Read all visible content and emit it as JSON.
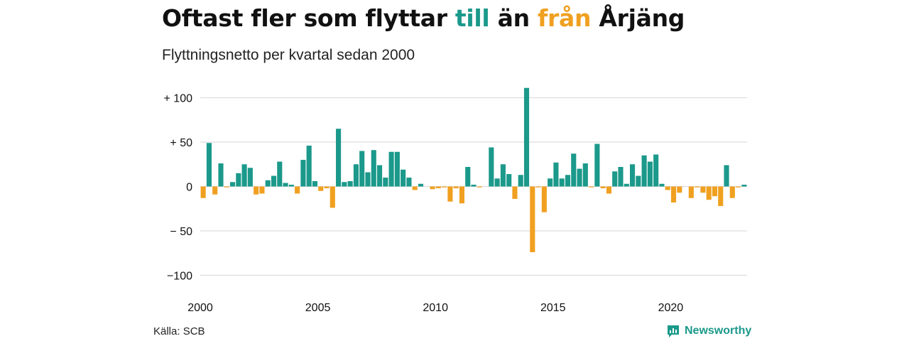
{
  "header": {
    "title_prefix": "Oftast fler som flyttar ",
    "title_in": "till",
    "title_mid": " än ",
    "title_out": "från",
    "title_suffix": " Årjäng",
    "subtitle": "Flyttningsnetto per kvartal sedan 2000"
  },
  "footer": {
    "source": "Källa: SCB",
    "brand": "Newsworthy",
    "brand_icon": "newsworthy-logo-icon"
  },
  "colors": {
    "positive": "#1b998b",
    "negative": "#f0a020",
    "grid": "#dddddd",
    "text": "#111111"
  },
  "chart_data": {
    "type": "bar",
    "title": "Oftast fler som flyttar till än från Årjäng",
    "subtitle": "Flyttningsnetto per kvartal sedan 2000",
    "xlabel": "",
    "ylabel": "",
    "ylim": [
      -100,
      110
    ],
    "yticks": [
      100,
      50,
      0,
      -50,
      -100
    ],
    "ytick_labels": [
      "+ 100",
      "+  50",
      "0",
      "− 50",
      "−100"
    ],
    "xticks": [
      "2000",
      "2005",
      "2010",
      "2015",
      "2020"
    ],
    "grid": true,
    "start": "2000 Q1",
    "frequency": "quarter",
    "values": [
      -13,
      49,
      -9,
      26,
      -1,
      5,
      15,
      25,
      21,
      -9,
      -8,
      7,
      12,
      28,
      4,
      2,
      -8,
      30,
      46,
      6,
      -5,
      -2,
      -24,
      65,
      5,
      6,
      25,
      40,
      16,
      41,
      24,
      10,
      39,
      39,
      19,
      10,
      -4,
      3,
      0,
      -3,
      -2,
      -1,
      -17,
      -2,
      -19,
      22,
      2,
      -1,
      0,
      44,
      9,
      25,
      14,
      -14,
      13,
      111,
      -74,
      -1,
      -29,
      9,
      27,
      9,
      13,
      37,
      20,
      26,
      -1,
      48,
      -2,
      -8,
      17,
      22,
      3,
      25,
      12,
      35,
      28,
      36,
      3,
      -4,
      -18,
      -7,
      0,
      -13,
      -1,
      -7,
      -15,
      -11,
      -22,
      24,
      -13,
      -1,
      2
    ]
  }
}
